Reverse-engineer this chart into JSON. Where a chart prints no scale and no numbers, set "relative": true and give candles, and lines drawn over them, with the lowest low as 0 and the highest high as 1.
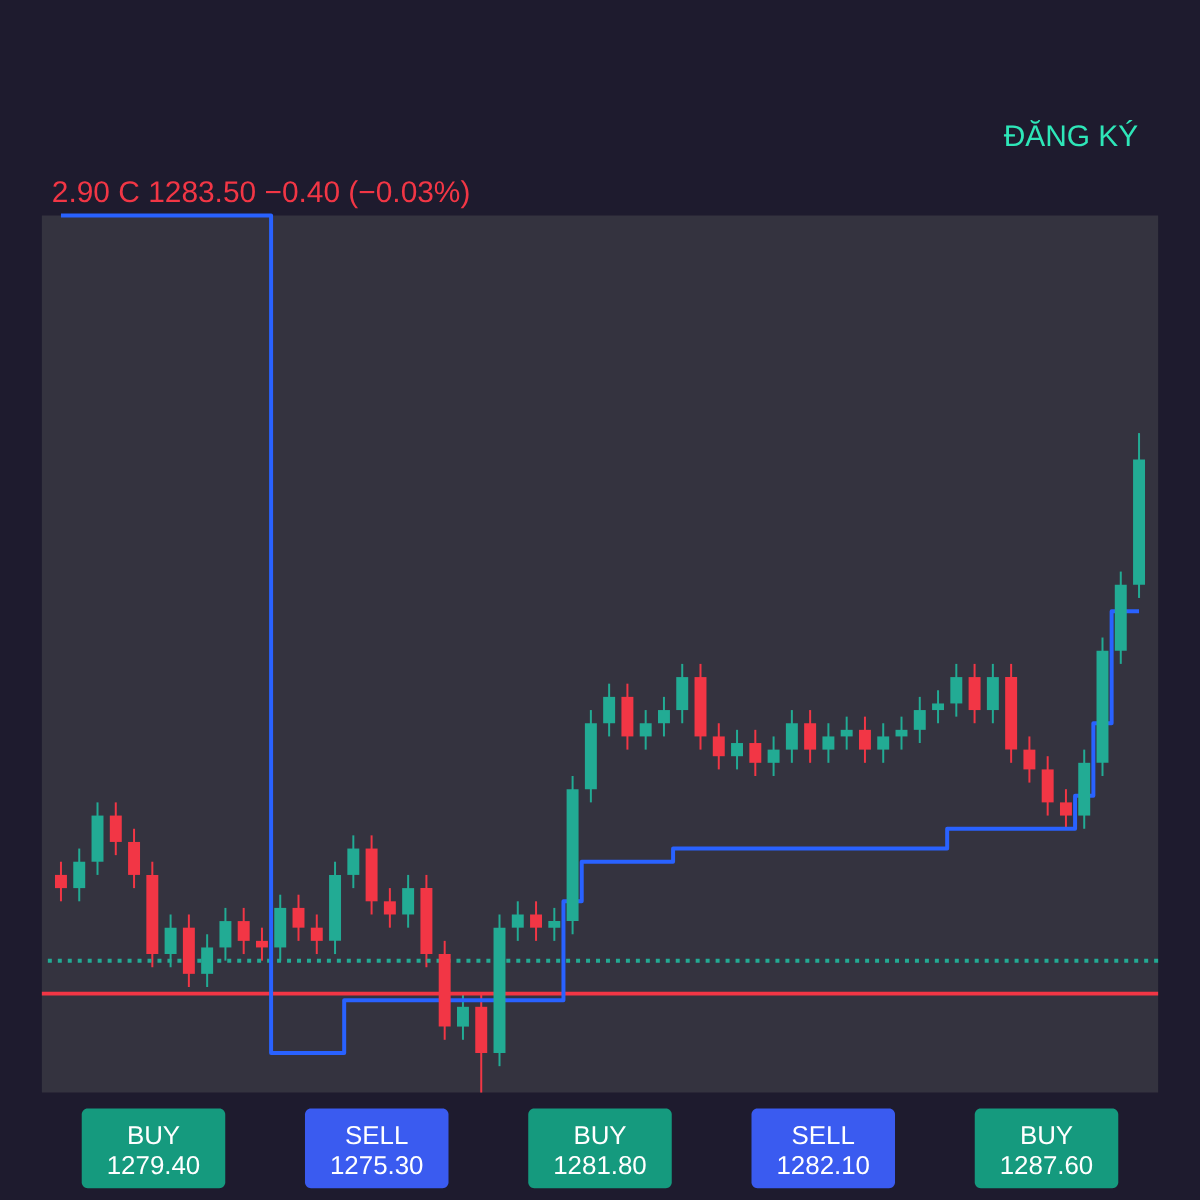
{
  "chart_data": {
    "type": "candlestick",
    "relative": true,
    "categories": [
      null,
      null,
      null,
      null,
      null,
      null,
      null,
      null,
      null,
      null,
      null,
      null,
      null,
      null,
      null,
      null,
      null,
      null,
      null,
      null,
      null,
      null,
      null,
      null,
      null,
      null,
      null,
      null,
      null,
      null,
      null,
      null,
      null,
      null,
      null,
      null,
      null,
      null,
      null,
      null,
      null,
      null,
      null,
      null,
      null,
      null,
      null,
      null,
      null,
      null,
      null,
      null,
      null,
      null,
      null,
      null,
      null,
      null,
      null,
      null
    ],
    "ohlc": [
      [
        0.33,
        0.35,
        0.29,
        0.31
      ],
      [
        0.31,
        0.37,
        0.29,
        0.35
      ],
      [
        0.35,
        0.44,
        0.33,
        0.42
      ],
      [
        0.42,
        0.44,
        0.36,
        0.38
      ],
      [
        0.38,
        0.4,
        0.31,
        0.33
      ],
      [
        0.33,
        0.35,
        0.19,
        0.21
      ],
      [
        0.21,
        0.27,
        0.19,
        0.25
      ],
      [
        0.25,
        0.27,
        0.16,
        0.18
      ],
      [
        0.18,
        0.24,
        0.16,
        0.22
      ],
      [
        0.22,
        0.28,
        0.2,
        0.26
      ],
      [
        0.26,
        0.28,
        0.21,
        0.23
      ],
      [
        0.23,
        0.25,
        0.2,
        0.22
      ],
      [
        0.22,
        0.3,
        0.2,
        0.28
      ],
      [
        0.28,
        0.3,
        0.23,
        0.25
      ],
      [
        0.25,
        0.27,
        0.21,
        0.23
      ],
      [
        0.23,
        0.35,
        0.21,
        0.33
      ],
      [
        0.33,
        0.39,
        0.31,
        0.37
      ],
      [
        0.37,
        0.39,
        0.27,
        0.29
      ],
      [
        0.29,
        0.31,
        0.25,
        0.27
      ],
      [
        0.27,
        0.33,
        0.25,
        0.31
      ],
      [
        0.31,
        0.33,
        0.19,
        0.21
      ],
      [
        0.21,
        0.23,
        0.08,
        0.1
      ],
      [
        0.1,
        0.15,
        0.08,
        0.13
      ],
      [
        0.13,
        0.15,
        0,
        0.06
      ],
      [
        0.06,
        0.27,
        0.04,
        0.25
      ],
      [
        0.25,
        0.29,
        0.23,
        0.27
      ],
      [
        0.27,
        0.29,
        0.23,
        0.25
      ],
      [
        0.25,
        0.28,
        0.23,
        0.26
      ],
      [
        0.26,
        0.48,
        0.24,
        0.46
      ],
      [
        0.46,
        0.58,
        0.44,
        0.56
      ],
      [
        0.56,
        0.62,
        0.54,
        0.6
      ],
      [
        0.6,
        0.62,
        0.52,
        0.54
      ],
      [
        0.54,
        0.58,
        0.52,
        0.56
      ],
      [
        0.56,
        0.6,
        0.54,
        0.58
      ],
      [
        0.58,
        0.65,
        0.56,
        0.63
      ],
      [
        0.63,
        0.65,
        0.52,
        0.54
      ],
      [
        0.54,
        0.56,
        0.49,
        0.51
      ],
      [
        0.51,
        0.55,
        0.49,
        0.53
      ],
      [
        0.53,
        0.55,
        0.48,
        0.5
      ],
      [
        0.5,
        0.54,
        0.48,
        0.52
      ],
      [
        0.52,
        0.58,
        0.5,
        0.56
      ],
      [
        0.56,
        0.58,
        0.5,
        0.52
      ],
      [
        0.52,
        0.56,
        0.5,
        0.54
      ],
      [
        0.54,
        0.57,
        0.52,
        0.55
      ],
      [
        0.55,
        0.57,
        0.5,
        0.52
      ],
      [
        0.52,
        0.56,
        0.5,
        0.54
      ],
      [
        0.54,
        0.57,
        0.52,
        0.55
      ],
      [
        0.55,
        0.6,
        0.53,
        0.58
      ],
      [
        0.58,
        0.61,
        0.56,
        0.59
      ],
      [
        0.59,
        0.65,
        0.57,
        0.63
      ],
      [
        0.63,
        0.65,
        0.56,
        0.58
      ],
      [
        0.58,
        0.65,
        0.56,
        0.63
      ],
      [
        0.63,
        0.65,
        0.5,
        0.52
      ],
      [
        0.52,
        0.54,
        0.47,
        0.49
      ],
      [
        0.49,
        0.51,
        0.42,
        0.44
      ],
      [
        0.44,
        0.46,
        0.4,
        0.42
      ],
      [
        0.42,
        0.52,
        0.4,
        0.5
      ],
      [
        0.5,
        0.69,
        0.48,
        0.67
      ],
      [
        0.67,
        0.79,
        0.65,
        0.77
      ],
      [
        0.77,
        1.0,
        0.75,
        0.96
      ]
    ],
    "colors": [
      "#f23645",
      "#22ab94",
      "#22ab94",
      "#f23645",
      "#f23645",
      "#f23645",
      "#22ab94",
      "#f23645",
      "#22ab94",
      "#22ab94",
      "#f23645",
      "#f23645",
      "#22ab94",
      "#f23645",
      "#f23645",
      "#22ab94",
      "#22ab94",
      "#f23645",
      "#f23645",
      "#22ab94",
      "#f23645",
      "#f23645",
      "#22ab94",
      "#f23645",
      "#22ab94",
      "#22ab94",
      "#f23645",
      "#22ab94",
      "#22ab94",
      "#22ab94",
      "#22ab94",
      "#f23645",
      "#22ab94",
      "#22ab94",
      "#22ab94",
      "#f23645",
      "#f23645",
      "#22ab94",
      "#f23645",
      "#22ab94",
      "#22ab94",
      "#f23645",
      "#22ab94",
      "#22ab94",
      "#f23645",
      "#22ab94",
      "#22ab94",
      "#22ab94",
      "#22ab94",
      "#22ab94",
      "#f23645",
      "#22ab94",
      "#f23645",
      "#f23645",
      "#f23645",
      "#f23645",
      "#22ab94",
      "#22ab94",
      "#22ab94",
      "#22ab94"
    ],
    "series": [
      {
        "type": "step",
        "color": "#2962ff",
        "values": [
          1.33,
          1.33,
          1.33,
          1.33,
          1.33,
          1.33,
          1.33,
          1.33,
          1.33,
          1.33,
          1.33,
          1.33,
          0.06,
          0.06,
          0.06,
          0.06,
          0.14,
          0.14,
          0.14,
          0.14,
          0.14,
          0.14,
          0.14,
          0.14,
          0.14,
          0.14,
          0.14,
          0.14,
          0.29,
          0.35,
          0.35,
          0.35,
          0.35,
          0.35,
          0.37,
          0.37,
          0.37,
          0.37,
          0.37,
          0.37,
          0.37,
          0.37,
          0.37,
          0.37,
          0.37,
          0.37,
          0.37,
          0.37,
          0.37,
          0.4,
          0.4,
          0.4,
          0.4,
          0.4,
          0.4,
          0.4,
          0.45,
          0.56,
          0.73,
          0.73
        ]
      }
    ],
    "ref_lines": [
      {
        "axis": "y",
        "value": 0.15,
        "color": "#f23645",
        "line_style": "solid"
      },
      {
        "axis": "y",
        "value": 0.2,
        "color": "#22ab94",
        "line_style": "dotted"
      }
    ],
    "annotations": [
      "ĐĂNG KÝ",
      "2.90 C 1283.50 −0.40 (−0.03%)",
      "BUY\n1279.40",
      "SELL\n1275.30",
      "BUY\n1281.80",
      "SELL\n1282.10",
      "BUY\n1287.60"
    ]
  }
}
